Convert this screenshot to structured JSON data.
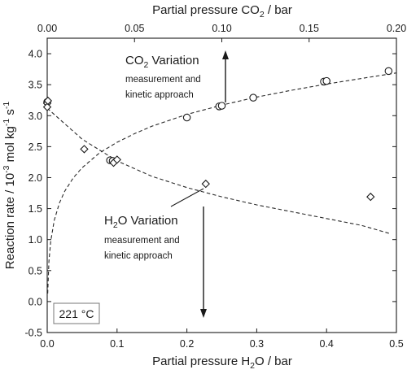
{
  "chart_data": {
    "type": "scatter",
    "title": "",
    "xlabel_bottom": {
      "main": "Partial pressure H",
      "sub": "2",
      "tail": "O / bar"
    },
    "xlabel_top": {
      "main": "Partial pressure CO",
      "sub": "2",
      "tail": " / bar"
    },
    "ylabel": {
      "main": "Reaction rate / 10",
      "sup1": "-3",
      "mid": " mol kg",
      "sup2": "-1",
      "end": " s",
      "sup3": "-1"
    },
    "xlim_bottom": [
      0.0,
      0.5
    ],
    "xlim_top": [
      0.0,
      0.2
    ],
    "ylim": [
      -0.5,
      4.25
    ],
    "xticks_bottom": [
      "0.0",
      "0.1",
      "0.2",
      "0.3",
      "0.4",
      "0.5"
    ],
    "xticks_top": [
      "0.00",
      "0.05",
      "0.10",
      "0.15",
      "0.20"
    ],
    "yticks": [
      "-0.5",
      "0.0",
      "0.5",
      "1.0",
      "1.5",
      "2.0",
      "2.5",
      "3.0",
      "3.5",
      "4.0"
    ],
    "grid": false,
    "series": [
      {
        "marker": "circle",
        "axis": "top",
        "x": [
          0.0,
          0.036,
          0.0375,
          0.08,
          0.0985,
          0.1,
          0.118,
          0.1585,
          0.16,
          0.1955
        ],
        "y": [
          3.22,
          2.28,
          2.27,
          2.97,
          3.15,
          3.16,
          3.29,
          3.55,
          3.56,
          3.72
        ]
      },
      {
        "marker": "diamond",
        "axis": "bottom",
        "x": [
          0.0,
          0.0,
          0.001,
          0.053,
          0.095,
          0.1,
          0.227,
          0.463
        ],
        "y": [
          3.2,
          3.14,
          3.24,
          2.46,
          2.24,
          2.29,
          1.9,
          1.69
        ]
      },
      {
        "type": "line",
        "style": "dashed",
        "axis": "top",
        "x": [
          0.0003,
          0.001,
          0.002,
          0.004,
          0.007,
          0.01,
          0.015,
          0.02,
          0.03,
          0.04,
          0.05,
          0.06,
          0.08,
          0.1,
          0.12,
          0.14,
          0.16,
          0.18,
          0.2
        ],
        "y": [
          0.13,
          0.65,
          0.97,
          1.31,
          1.59,
          1.78,
          2.0,
          2.16,
          2.4,
          2.57,
          2.71,
          2.83,
          3.02,
          3.17,
          3.3,
          3.41,
          3.51,
          3.6,
          3.69
        ]
      },
      {
        "type": "line",
        "style": "dashed",
        "axis": "bottom",
        "x": [
          0.0,
          0.05,
          0.1,
          0.15,
          0.2,
          0.25,
          0.3,
          0.35,
          0.4,
          0.45,
          0.49
        ],
        "y": [
          3.12,
          2.62,
          2.27,
          2.02,
          1.84,
          1.69,
          1.56,
          1.45,
          1.34,
          1.23,
          1.1
        ]
      }
    ],
    "annotations": {
      "co2": {
        "main": "CO",
        "sub": "2",
        "tail": " Variation",
        "line1": "measurement and",
        "line2": "kinetic approach"
      },
      "h2o": {
        "main": "H",
        "sub": "2",
        "tail": "O Variation",
        "line1": "measurement and",
        "line2": "kinetic approach"
      },
      "temperature": "221 °C"
    }
  }
}
